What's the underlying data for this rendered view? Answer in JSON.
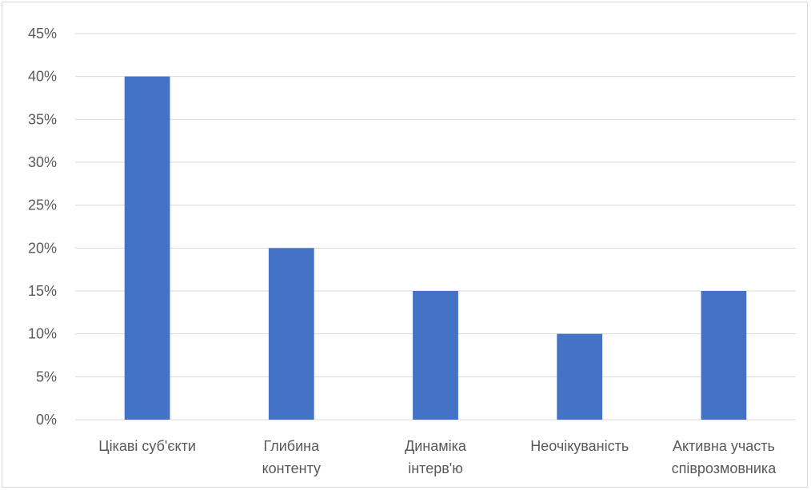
{
  "chart_data": {
    "type": "bar",
    "categories": [
      [
        "Цікаві суб'єкти"
      ],
      [
        "Глибина",
        "контенту"
      ],
      [
        "Динаміка",
        "інтерв'ю"
      ],
      [
        "Неочікуваність"
      ],
      [
        "Активна участь",
        "співрозмовника"
      ]
    ],
    "values": [
      40,
      20,
      15,
      10,
      15
    ],
    "y_ticks": [
      "0%",
      "5%",
      "10%",
      "15%",
      "20%",
      "25%",
      "30%",
      "35%",
      "40%",
      "45%"
    ],
    "ylim": [
      0,
      45
    ],
    "grid": true,
    "bar_color": "#4472C4",
    "grid_color": "#d9d9d9"
  }
}
